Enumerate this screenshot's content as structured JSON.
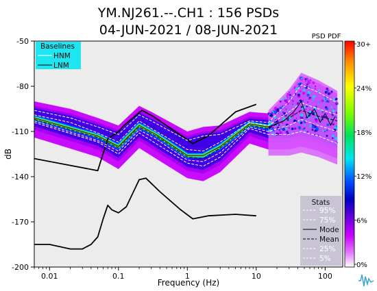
{
  "header": {
    "title_line1": "YM.NJ261.--.CH1 : 156 PSDs",
    "title_line2": "04-JUN-2021 / 08-JUN-2021",
    "pdf_label": "PSD PDF"
  },
  "legend_baselines": {
    "title": "Baselines",
    "items": [
      "HNM",
      "LNM"
    ],
    "bg_color": "#1ee6f0"
  },
  "legend_stats": {
    "title": "Stats",
    "items": [
      "95%",
      "75%",
      "Mode",
      "Mean",
      "25%",
      "5%"
    ],
    "bg_color": "#c8c4d4"
  },
  "colorbar": {
    "ticks": [
      "30+",
      "24%",
      "18%",
      "12%",
      "6%",
      "0%"
    ],
    "colors": [
      "#ff0000",
      "#ff8c00",
      "#ffff00",
      "#7cfc00",
      "#00e060",
      "#00e5ee",
      "#0050ff",
      "#0000c0",
      "#6400d8",
      "#c800ff",
      "#e580ff",
      "#ffffff"
    ]
  },
  "chart_data": {
    "type": "line",
    "title": "YM.NJ261.--.CH1 : 156 PSDs",
    "subtitle": "04-JUN-2021 / 08-JUN-2021",
    "xlabel": "Frequency (Hz)",
    "ylabel": "dB",
    "xscale": "log",
    "xlim": [
      0.006,
      180
    ],
    "ylim": [
      -200,
      -50
    ],
    "x_ticks": [
      0.01,
      0.1,
      1,
      10,
      100
    ],
    "x_tick_labels": [
      "0.01",
      "0.1",
      "1",
      "10",
      "100"
    ],
    "y_ticks": [
      -50,
      -80,
      -110,
      -140,
      -170,
      -200
    ],
    "y_tick_labels": [
      "-50",
      "-80",
      "-110",
      "-140",
      "-170",
      "-200"
    ],
    "grid": false,
    "series": [
      {
        "name": "HNM",
        "color": "#000000",
        "points": [
          [
            0.006,
            -128
          ],
          [
            0.05,
            -136
          ],
          [
            0.07,
            -115
          ],
          [
            0.1,
            -110
          ],
          [
            0.12,
            -106
          ],
          [
            0.22,
            -96
          ],
          [
            0.32,
            -100
          ],
          [
            1.2,
            -118
          ],
          [
            2,
            -113
          ],
          [
            5,
            -97
          ],
          [
            10,
            -92
          ]
        ]
      },
      {
        "name": "LNM",
        "color": "#000000",
        "points": [
          [
            0.006,
            -185
          ],
          [
            0.01,
            -185
          ],
          [
            0.02,
            -188
          ],
          [
            0.03,
            -188
          ],
          [
            0.04,
            -185
          ],
          [
            0.05,
            -180
          ],
          [
            0.06,
            -168
          ],
          [
            0.07,
            -159
          ],
          [
            0.08,
            -162
          ],
          [
            0.1,
            -164
          ],
          [
            0.13,
            -160
          ],
          [
            0.2,
            -142
          ],
          [
            0.25,
            -141
          ],
          [
            0.4,
            -150
          ],
          [
            0.8,
            -162
          ],
          [
            1.2,
            -168
          ],
          [
            2,
            -166
          ],
          [
            5,
            -165
          ],
          [
            10,
            -166
          ]
        ]
      },
      {
        "name": "95%",
        "color": "#ffffff",
        "points": [
          [
            0.006,
            -96
          ],
          [
            0.02,
            -101
          ],
          [
            0.05,
            -107
          ],
          [
            0.1,
            -112
          ],
          [
            0.2,
            -99
          ],
          [
            0.3,
            -103
          ],
          [
            1,
            -116
          ],
          [
            1.7,
            -113
          ],
          [
            3,
            -112
          ],
          [
            8,
            -103
          ],
          [
            15,
            -104
          ],
          [
            30,
            -90
          ],
          [
            45,
            -79
          ],
          [
            80,
            -84
          ],
          [
            150,
            -91
          ]
        ]
      },
      {
        "name": "75%",
        "color": "#ffffff",
        "points": [
          [
            0.006,
            -99
          ],
          [
            0.02,
            -104
          ],
          [
            0.05,
            -111
          ],
          [
            0.1,
            -117
          ],
          [
            0.2,
            -103
          ],
          [
            0.3,
            -108
          ],
          [
            1,
            -122
          ],
          [
            1.7,
            -123
          ],
          [
            3,
            -117
          ],
          [
            8,
            -104
          ],
          [
            15,
            -106
          ],
          [
            30,
            -97
          ],
          [
            45,
            -91
          ],
          [
            80,
            -95
          ],
          [
            150,
            -99
          ]
        ]
      },
      {
        "name": "Mode",
        "color": "#000000",
        "points": [
          [
            0.006,
            -101
          ],
          [
            0.05,
            -113
          ],
          [
            0.1,
            -120
          ],
          [
            0.2,
            -106
          ],
          [
            0.35,
            -112
          ],
          [
            1,
            -126
          ],
          [
            1.7,
            -126
          ],
          [
            3,
            -120
          ],
          [
            8,
            -105
          ],
          [
            15,
            -107
          ],
          [
            25,
            -103
          ],
          [
            35,
            -97
          ],
          [
            45,
            -90
          ],
          [
            55,
            -101
          ],
          [
            70,
            -95
          ],
          [
            85,
            -104
          ],
          [
            100,
            -98
          ],
          [
            120,
            -106
          ],
          [
            140,
            -100
          ]
        ]
      },
      {
        "name": "Mean",
        "color": "#000000",
        "points": [
          [
            0.006,
            -102
          ],
          [
            0.05,
            -114
          ],
          [
            0.1,
            -121
          ],
          [
            0.2,
            -107
          ],
          [
            0.35,
            -113
          ],
          [
            1,
            -127
          ],
          [
            1.7,
            -128
          ],
          [
            3,
            -121
          ],
          [
            8,
            -106
          ],
          [
            15,
            -108
          ],
          [
            30,
            -101
          ],
          [
            45,
            -96
          ],
          [
            80,
            -100
          ],
          [
            150,
            -103
          ]
        ]
      },
      {
        "name": "25%",
        "color": "#ffffff",
        "points": [
          [
            0.006,
            -103
          ],
          [
            0.05,
            -116
          ],
          [
            0.1,
            -123
          ],
          [
            0.2,
            -109
          ],
          [
            0.35,
            -115
          ],
          [
            1,
            -129
          ],
          [
            1.7,
            -130
          ],
          [
            3,
            -124
          ],
          [
            8,
            -107
          ],
          [
            15,
            -110
          ],
          [
            30,
            -106
          ],
          [
            45,
            -102
          ],
          [
            80,
            -106
          ],
          [
            150,
            -110
          ]
        ]
      },
      {
        "name": "5%",
        "color": "#ffffff",
        "points": [
          [
            0.006,
            -104
          ],
          [
            0.05,
            -117
          ],
          [
            0.1,
            -125
          ],
          [
            0.2,
            -111
          ],
          [
            0.35,
            -118
          ],
          [
            1,
            -131
          ],
          [
            1.7,
            -133
          ],
          [
            3,
            -127
          ],
          [
            8,
            -108
          ],
          [
            15,
            -112
          ],
          [
            30,
            -112
          ],
          [
            45,
            -110
          ],
          [
            80,
            -113
          ],
          [
            150,
            -118
          ]
        ]
      }
    ]
  }
}
